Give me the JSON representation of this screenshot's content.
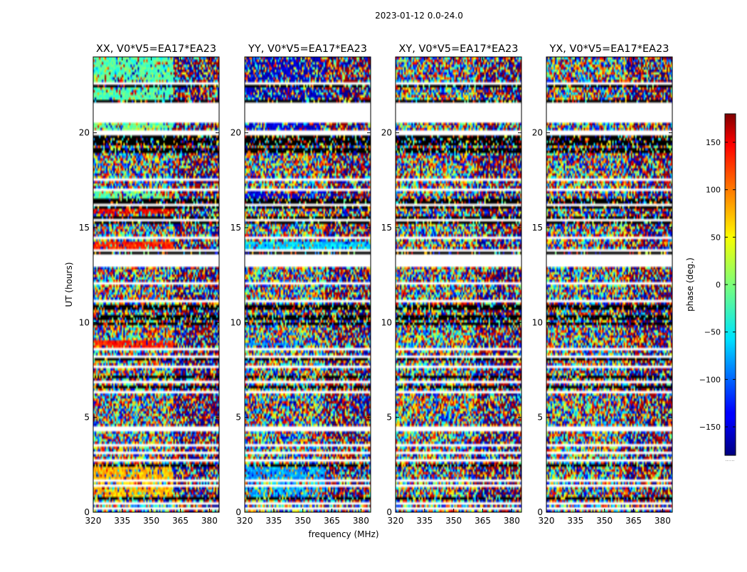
{
  "chart_data": {
    "type": "heatmap",
    "suptitle": "2023-01-12 0.0-24.0",
    "xlabel": "frequency (MHz)",
    "ylabel": "UT (hours)",
    "xlim": [
      320,
      385
    ],
    "ylim": [
      0,
      24
    ],
    "xticks": [
      320,
      335,
      350,
      365,
      380
    ],
    "yticks": [
      0,
      5,
      10,
      15,
      20
    ],
    "colorbar": {
      "label": "phase (deg.)",
      "range": [
        -180,
        180
      ],
      "ticks": [
        150,
        100,
        50,
        0,
        -50,
        -100,
        -150
      ],
      "tick_labels": [
        "150",
        "100",
        "50",
        "0",
        "−50",
        "−100",
        "−150"
      ],
      "colormap": "jet",
      "footnote": "......"
    },
    "panels": [
      {
        "title": "XX, V0*V5=EA17*EA23",
        "pattern": "XX",
        "segments": [
          {
            "t0": 0.8,
            "t1": 1.6,
            "f0": 320,
            "f1": 361,
            "phase": 65,
            "coherence": 0.6
          },
          {
            "t0": 1.7,
            "t1": 2.35,
            "f0": 320,
            "f1": 361,
            "phase": 70,
            "coherence": 0.75
          },
          {
            "t0": 8.7,
            "t1": 9.05,
            "f0": 320,
            "f1": 361,
            "phase": 125,
            "coherence": 0.75
          },
          {
            "t0": 13.9,
            "t1": 14.3,
            "f0": 320,
            "f1": 361,
            "phase": 125,
            "coherence": 0.8
          },
          {
            "t0": 15.7,
            "t1": 16.0,
            "f0": 320,
            "f1": 361,
            "phase": 140,
            "coherence": 0.8
          },
          {
            "t0": 16.4,
            "t1": 16.9,
            "f0": 320,
            "f1": 356,
            "phase": -10,
            "coherence": 0.7
          },
          {
            "t0": 20.1,
            "t1": 20.6,
            "f0": 320,
            "f1": 361,
            "phase": -5,
            "coherence": 0.65
          },
          {
            "t0": 21.7,
            "t1": 24.0,
            "f0": 320,
            "f1": 361,
            "phase": -15,
            "coherence": 0.75
          }
        ]
      },
      {
        "title": "YY, V0*V5=EA17*EA23",
        "pattern": "YY",
        "segments": [
          {
            "t0": 0.8,
            "t1": 1.6,
            "f0": 320,
            "f1": 361,
            "phase": -70,
            "coherence": 0.55
          },
          {
            "t0": 1.7,
            "t1": 2.35,
            "f0": 320,
            "f1": 361,
            "phase": -75,
            "coherence": 0.7
          },
          {
            "t0": 8.75,
            "t1": 9.0,
            "f0": 320,
            "f1": 361,
            "phase": -80,
            "coherence": 0.8
          },
          {
            "t0": 13.9,
            "t1": 14.3,
            "f0": 320,
            "f1": 385,
            "phase": -60,
            "coherence": 0.8
          },
          {
            "t0": 16.4,
            "t1": 16.9,
            "f0": 320,
            "f1": 361,
            "phase": -150,
            "coherence": 0.55
          },
          {
            "t0": 20.1,
            "t1": 20.6,
            "f0": 320,
            "f1": 361,
            "phase": -150,
            "coherence": 0.55
          },
          {
            "t0": 21.7,
            "t1": 24.0,
            "f0": 320,
            "f1": 361,
            "phase": -160,
            "coherence": 0.5
          },
          {
            "t0": 21.7,
            "t1": 24.0,
            "f0": 340,
            "f1": 361,
            "phase": 160,
            "coherence": 0.4
          }
        ]
      },
      {
        "title": "XY, V0*V5=EA17*EA23",
        "pattern": "XY",
        "segments": []
      },
      {
        "title": "YX, V0*V5=EA17*EA23",
        "pattern": "YX",
        "segments": []
      }
    ],
    "gaps_hours": [
      [
        0.15,
        0.22
      ],
      [
        0.45,
        0.5
      ],
      [
        0.95,
        1.0
      ],
      [
        1.35,
        1.45
      ],
      [
        1.6,
        1.7
      ],
      [
        2.35,
        2.45
      ],
      [
        2.7,
        2.75
      ],
      [
        3.1,
        3.15
      ],
      [
        3.5,
        3.55
      ],
      [
        4.3,
        4.5
      ],
      [
        4.75,
        4.8
      ],
      [
        5.3,
        5.35
      ],
      [
        5.55,
        5.65
      ],
      [
        6.3,
        6.4
      ],
      [
        6.85,
        6.95
      ],
      [
        7.6,
        7.7
      ],
      [
        8.2,
        8.3
      ],
      [
        8.6,
        8.65
      ],
      [
        9.3,
        9.35
      ],
      [
        9.6,
        9.65
      ],
      [
        10.1,
        10.15
      ],
      [
        10.55,
        10.6
      ],
      [
        11.1,
        11.2
      ],
      [
        12.0,
        12.1
      ],
      [
        12.95,
        13.6
      ],
      [
        13.75,
        13.85
      ],
      [
        14.4,
        14.5
      ],
      [
        14.8,
        14.85
      ],
      [
        15.4,
        15.5
      ],
      [
        16.1,
        16.3
      ],
      [
        17.0,
        17.1
      ],
      [
        17.5,
        17.55
      ],
      [
        18.0,
        18.05
      ],
      [
        18.5,
        18.6
      ],
      [
        19.2,
        19.25
      ],
      [
        19.9,
        20.1
      ],
      [
        20.6,
        21.55
      ],
      [
        22.6,
        22.7
      ],
      [
        23.2,
        23.25
      ],
      [
        23.6,
        23.65
      ]
    ],
    "dark_rows_hours": [
      0.72,
      2.48,
      6.55,
      6.62,
      7.15,
      8.05,
      9.9,
      10.2,
      10.3,
      10.75,
      10.82,
      13.72,
      15.3,
      15.55,
      16.05,
      16.35,
      16.4,
      19.05,
      19.15,
      19.35,
      19.5,
      19.62,
      19.75,
      21.65,
      22.45,
      22.55
    ]
  }
}
